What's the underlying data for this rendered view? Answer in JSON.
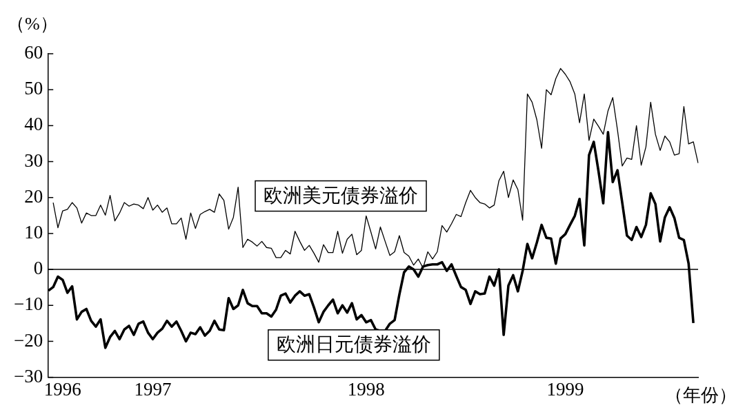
{
  "chart_data": {
    "type": "line",
    "ylabel": "（%）",
    "xlabel": "（年份）",
    "categories": [
      null,
      null,
      null,
      "1996",
      null,
      null,
      null,
      null,
      null,
      null,
      null,
      null,
      null,
      null,
      null,
      null,
      null,
      null,
      null,
      null,
      null,
      null,
      "1997",
      null,
      null,
      null,
      null,
      null,
      null,
      null,
      null,
      null,
      null,
      null,
      null,
      null,
      null,
      null,
      null,
      null,
      null,
      null,
      null,
      null,
      null,
      null,
      null,
      null,
      null,
      null,
      null,
      null,
      null,
      null,
      null,
      null,
      null,
      null,
      null,
      null,
      null,
      null,
      null,
      null,
      null,
      null,
      null,
      "1998",
      null,
      null,
      null,
      null,
      null,
      null,
      null,
      null,
      null,
      null,
      null,
      null,
      null,
      null,
      null,
      null,
      null,
      null,
      null,
      null,
      null,
      null,
      null,
      null,
      null,
      null,
      null,
      null,
      null,
      null,
      null,
      null,
      null,
      null,
      null,
      null,
      null,
      null,
      null,
      null,
      null,
      "1999",
      null,
      null,
      null,
      null,
      null,
      null,
      null,
      null,
      null,
      null,
      null,
      null,
      null,
      null,
      null,
      null,
      null,
      null,
      null,
      null,
      null,
      null,
      null,
      null,
      null,
      null,
      null,
      null
    ],
    "ylim": [
      -30,
      60
    ],
    "yticks": [
      -30,
      -20,
      -10,
      0,
      10,
      20,
      30,
      40,
      50,
      60
    ],
    "grid": false,
    "legend": false,
    "marker": "none",
    "line_style": "solid",
    "ref_lines": [
      {
        "axis": "y",
        "value": 0,
        "color": "#000000"
      }
    ],
    "series": [
      {
        "name": "欧洲美元债券溢价",
        "color": "#000000",
        "values": [
          null,
          18.6,
          11.6,
          16.3,
          16.7,
          18.6,
          17.1,
          12.9,
          15.7,
          15,
          15,
          17.9,
          15.1,
          20.6,
          13.5,
          15.7,
          18.6,
          17.6,
          18.2,
          17.9,
          16.9,
          20,
          16.5,
          17.9,
          15.9,
          17.1,
          12.7,
          12.7,
          14.3,
          8.4,
          15.7,
          11.4,
          15.3,
          16.1,
          16.7,
          15.9,
          21,
          19.2,
          11.2,
          14.5,
          22.9,
          6.1,
          8.4,
          7.6,
          6.5,
          7.8,
          6.1,
          5.9,
          3.3,
          3.3,
          5.3,
          4.3,
          10.6,
          7.8,
          5.3,
          6.7,
          4.5,
          2,
          6.9,
          4.7,
          4.7,
          10.6,
          4.5,
          8.4,
          9.8,
          4.1,
          5.3,
          14.9,
          10.4,
          5.7,
          11.8,
          7.8,
          3.9,
          4.9,
          9.4,
          4.7,
          3.7,
          1.2,
          2.9,
          0.4,
          4.9,
          2.9,
          4.9,
          12.2,
          10.4,
          12.7,
          15.3,
          14.7,
          18.6,
          22,
          20,
          18.6,
          18.2,
          17.1,
          17.9,
          24.7,
          27.3,
          20,
          24.9,
          22.2,
          13.7,
          48.8,
          46.5,
          41.6,
          33.7,
          50,
          48.6,
          53.1,
          55.9,
          54.3,
          52.2,
          48.8,
          40.8,
          48.8,
          35.9,
          41.8,
          39.8,
          37.6,
          44.1,
          47.8,
          38.8,
          28.8,
          31,
          30.6,
          40,
          29,
          34.1,
          46.5,
          37.6,
          33.1,
          37.1,
          35.5,
          31.8,
          32.2,
          45.3,
          34.9,
          35.5,
          29.6
        ]
      },
      {
        "name": "欧洲日元债券溢价",
        "color": "#000000",
        "values": [
          -5.9,
          -4.9,
          -2,
          -2.9,
          -6.5,
          -4.7,
          -13.9,
          -11.8,
          -11,
          -14.3,
          -15.9,
          -13.9,
          -21.8,
          -18.8,
          -17.1,
          -19.4,
          -16.7,
          -15.7,
          -18.2,
          -15.1,
          -14.5,
          -17.6,
          -19.4,
          -17.6,
          -16.5,
          -14.3,
          -15.9,
          -14.5,
          -17.1,
          -20,
          -17.6,
          -18,
          -16.1,
          -18.4,
          -17.1,
          -14.3,
          -16.7,
          -16.9,
          -8,
          -11,
          -10,
          -5.7,
          -9.4,
          -10.2,
          -10.2,
          -12.2,
          -12.2,
          -13.1,
          -11.2,
          -7.3,
          -6.7,
          -9.2,
          -7.3,
          -6.1,
          -7.3,
          -6.9,
          -10.6,
          -14.7,
          -11.8,
          -10,
          -8.4,
          -12.2,
          -10,
          -12,
          -9.4,
          -13.9,
          -12.7,
          -14.7,
          -14.1,
          -16.7,
          -17.1,
          -17.1,
          -15.1,
          -14.1,
          -7,
          -0.8,
          0.8,
          0,
          -2,
          0.8,
          1.2,
          1.4,
          1.4,
          2,
          -0.4,
          1.4,
          -1.8,
          -4.9,
          -5.7,
          -9.6,
          -6.1,
          -6.9,
          -6.7,
          -2,
          -4.5,
          0,
          -18.2,
          -4.5,
          -1.6,
          -6.1,
          -0.4,
          7.1,
          3.1,
          7.5,
          12.4,
          8.8,
          8.6,
          1.6,
          8.6,
          9.8,
          12.4,
          14.9,
          19.6,
          6.7,
          31.8,
          35.5,
          27.3,
          18.4,
          38.2,
          24.3,
          27.6,
          18.6,
          9.4,
          8.2,
          11.8,
          9,
          12.4,
          21.2,
          18.2,
          7.8,
          14.5,
          17.3,
          14.3,
          8.8,
          8.2,
          1.6,
          -14.9,
          null
        ]
      }
    ]
  }
}
